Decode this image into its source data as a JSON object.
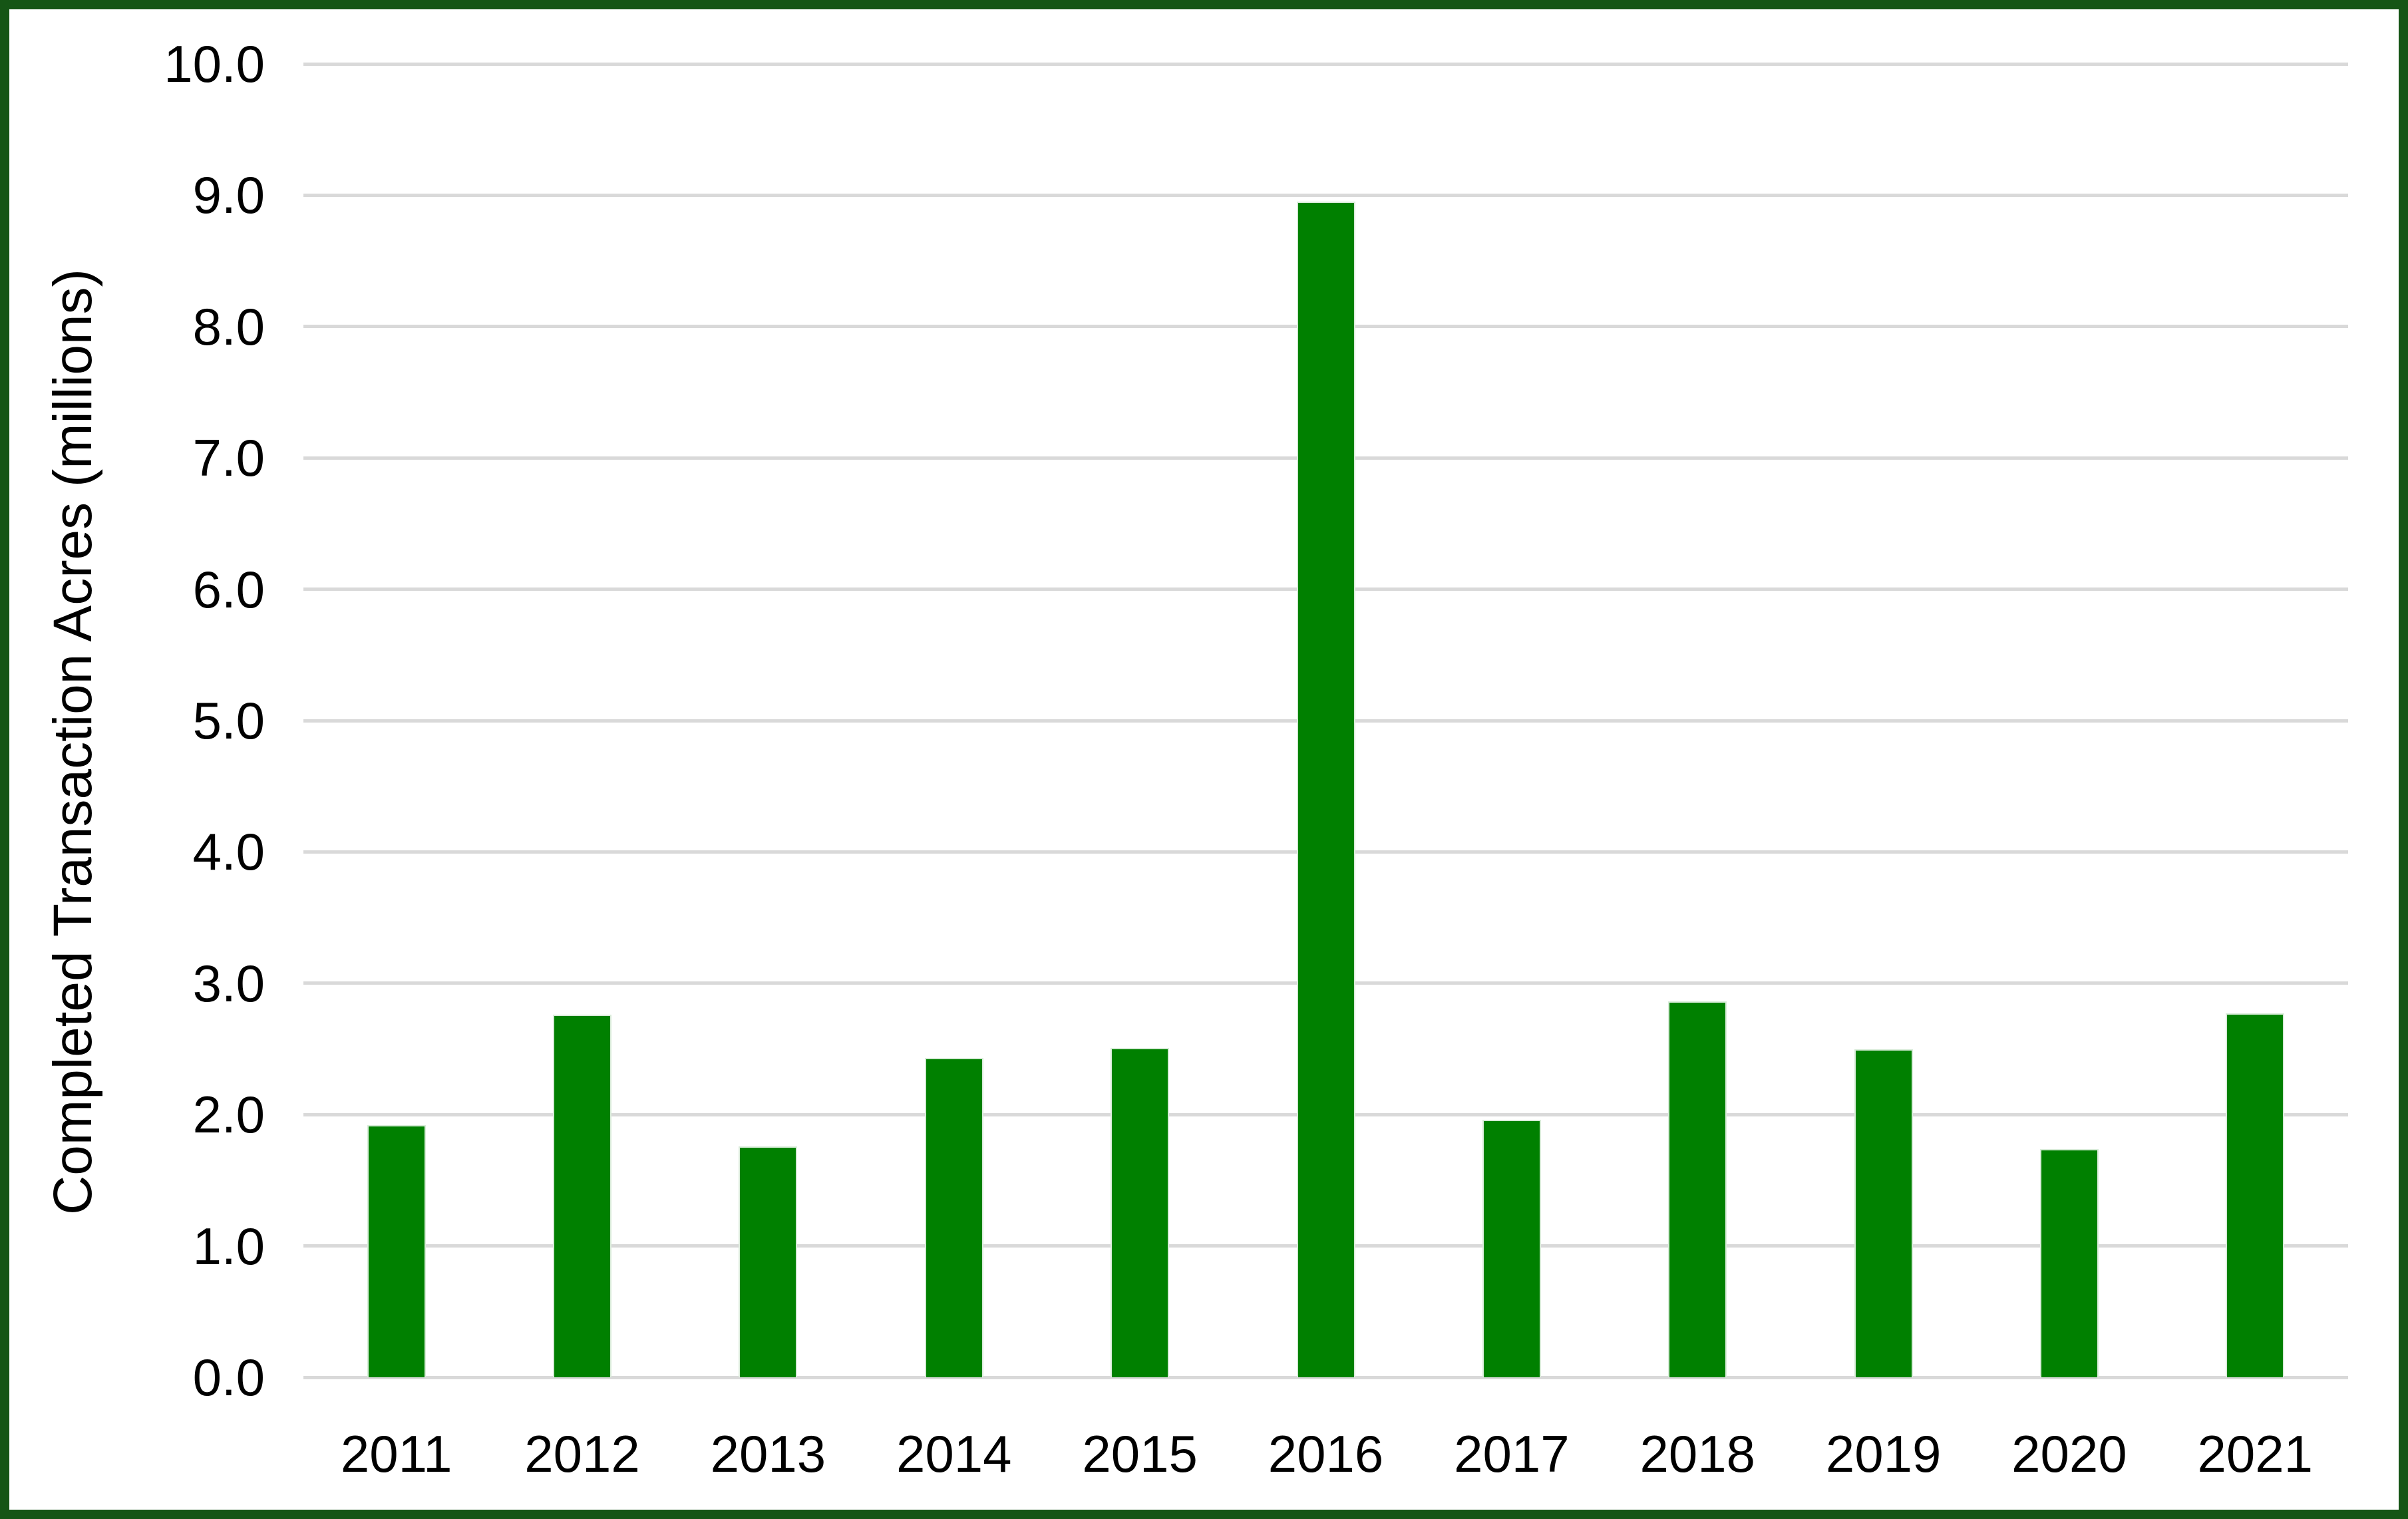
{
  "chart_data": {
    "type": "bar",
    "title": "",
    "xlabel": "",
    "ylabel": "Completed Transaction Acres (millions)",
    "categories": [
      "2011",
      "2012",
      "2013",
      "2014",
      "2015",
      "2016",
      "2017",
      "2018",
      "2019",
      "2020",
      "2021"
    ],
    "values": [
      1.92,
      2.76,
      1.76,
      2.43,
      2.51,
      8.95,
      1.96,
      2.86,
      2.5,
      1.74,
      2.77
    ],
    "ylim": [
      0,
      10
    ],
    "ytick_step": 1.0,
    "ytick_labels": [
      "0.0",
      "1.0",
      "2.0",
      "3.0",
      "4.0",
      "5.0",
      "6.0",
      "7.0",
      "8.0",
      "9.0",
      "10.0"
    ],
    "grid": true,
    "legend": false,
    "colors": {
      "bar_fill": "#008000",
      "bar_edge": "#d9ecd9",
      "gridline": "#d9d9d9",
      "frame_border": "#155515",
      "background": "#ffffff",
      "text": "#000000"
    }
  }
}
